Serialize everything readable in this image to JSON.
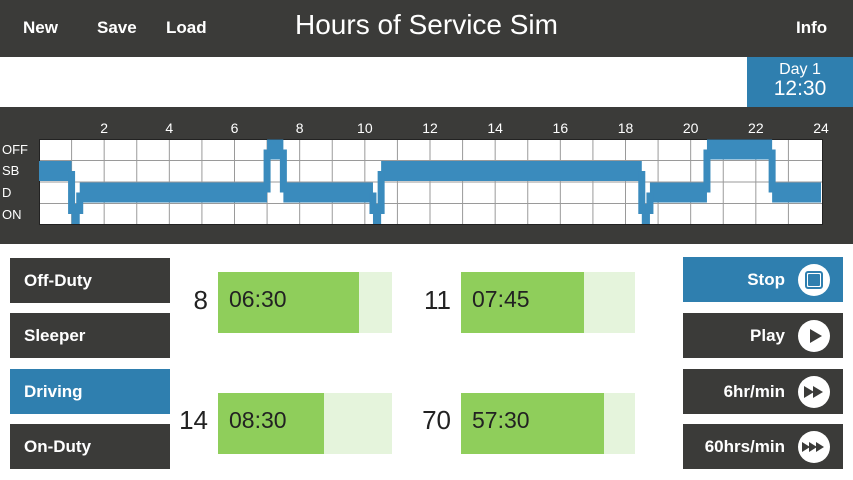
{
  "header": {
    "new_label": "New",
    "save_label": "Save",
    "load_label": "Load",
    "title": "Hours of Service Sim",
    "info_label": "Info"
  },
  "day": {
    "label": "Day 1",
    "time": "12:30"
  },
  "graph": {
    "tick_labels": [
      "2",
      "4",
      "6",
      "8",
      "10",
      "12",
      "14",
      "16",
      "18",
      "20",
      "22",
      "24"
    ],
    "row_labels": [
      "OFF",
      "SB",
      "D",
      "ON"
    ],
    "line_color": "#3a8bbd",
    "segments": [
      {
        "status": "SB",
        "start": 0,
        "end": 1
      },
      {
        "status": "ON",
        "start": 1,
        "end": 1.25
      },
      {
        "status": "D",
        "start": 1.25,
        "end": 7
      },
      {
        "status": "OFF",
        "start": 7,
        "end": 7.5
      },
      {
        "status": "D",
        "start": 7.5,
        "end": 10.25
      },
      {
        "status": "ON",
        "start": 10.25,
        "end": 10.5
      },
      {
        "status": "SB",
        "start": 10.5,
        "end": 18.5
      },
      {
        "status": "ON",
        "start": 18.5,
        "end": 18.75
      },
      {
        "status": "D",
        "start": 18.75,
        "end": 20.5
      },
      {
        "status": "OFF",
        "start": 20.5,
        "end": 22.5
      },
      {
        "status": "D",
        "start": 22.5,
        "end": 24
      }
    ]
  },
  "statuses": [
    {
      "label": "Off-Duty",
      "active": false
    },
    {
      "label": "Sleeper",
      "active": false
    },
    {
      "label": "Driving",
      "active": true
    },
    {
      "label": "On-Duty",
      "active": false
    }
  ],
  "clocks": [
    {
      "limit": "8",
      "time": "06:30",
      "fraction": 0.8125
    },
    {
      "limit": "11",
      "time": "07:45",
      "fraction": 0.705
    },
    {
      "limit": "14",
      "time": "08:30",
      "fraction": 0.607
    },
    {
      "limit": "70",
      "time": "57:30",
      "fraction": 0.821
    }
  ],
  "speed": [
    {
      "label": "Stop",
      "icon": "stop-icon",
      "active": true
    },
    {
      "label": "Play",
      "icon": "play-icon",
      "active": false
    },
    {
      "label": "6hr/min",
      "icon": "fast-forward-icon",
      "active": false
    },
    {
      "label": "60hrs/min",
      "icon": "faster-forward-icon",
      "active": false
    }
  ],
  "colors": {
    "dark": "#3b3b39",
    "accent": "#2f7faf",
    "clock_fill": "#8fce5b",
    "clock_bg": "#e5f4dc"
  }
}
